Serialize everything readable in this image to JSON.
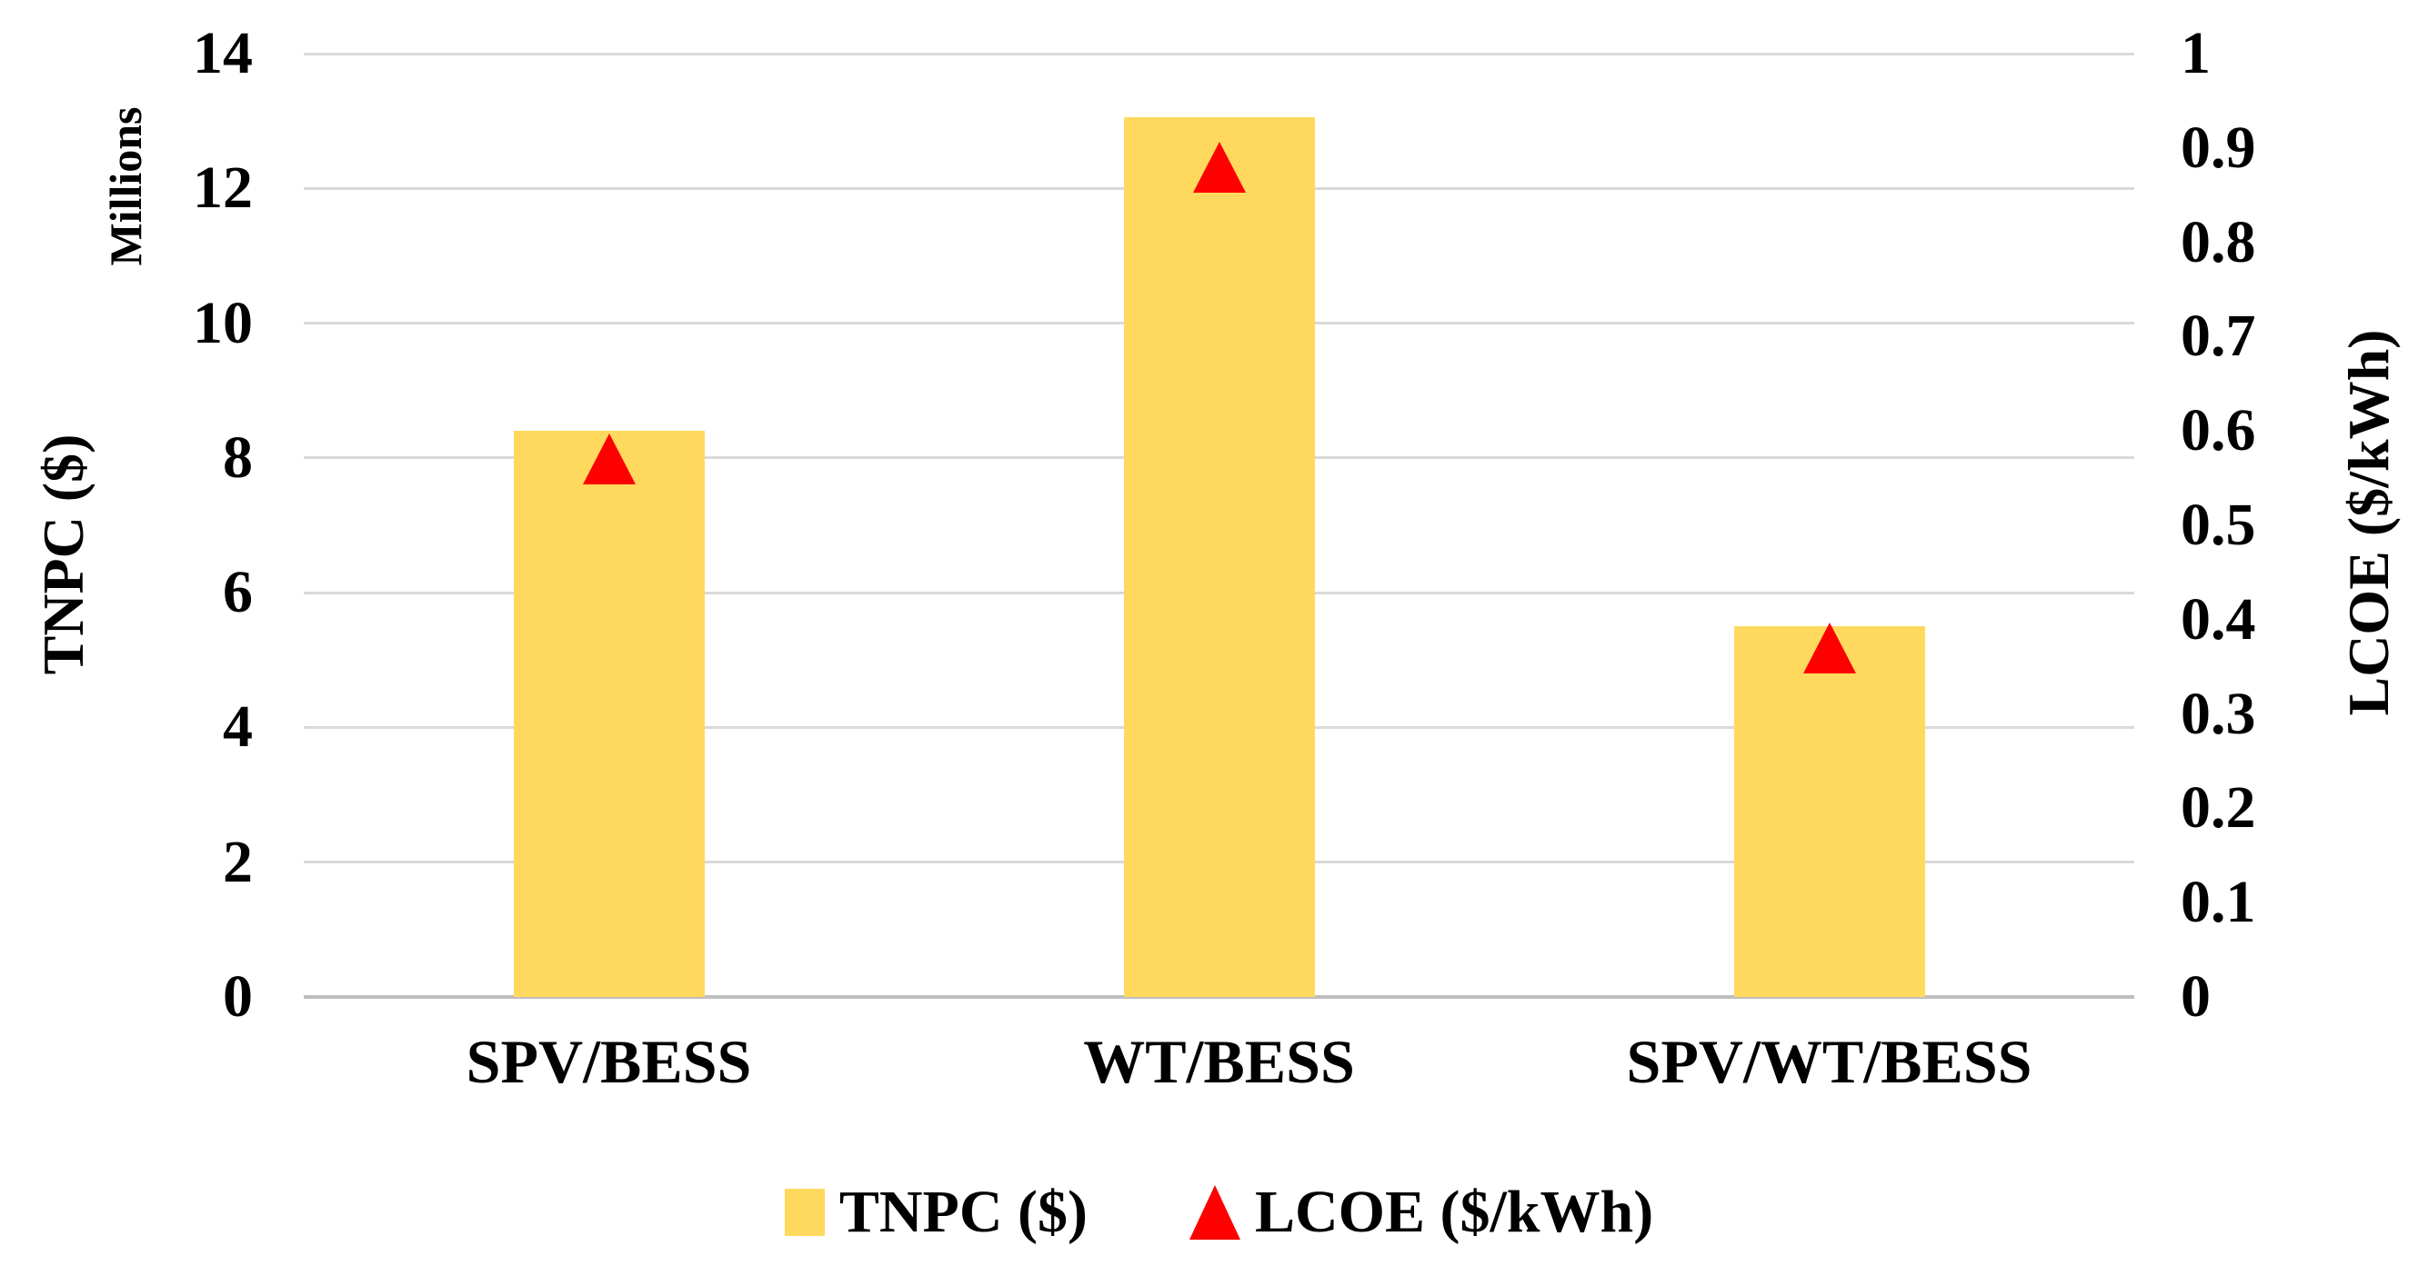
{
  "chart_data": {
    "type": "bar",
    "title": "",
    "categories": [
      "SPV/BESS",
      "WT/BESS",
      "SPV/WT/BESS"
    ],
    "series": [
      {
        "name": "TNPC ($)",
        "type": "bar",
        "axis": "left",
        "marker": "square",
        "color": "#FFD95E",
        "values": [
          8.4,
          13.05,
          5.5
        ]
      },
      {
        "name": "LCOE ($/kWh)",
        "type": "scatter",
        "axis": "right",
        "marker": "triangle",
        "color": "#FE0000",
        "values": [
          0.57,
          0.88,
          0.37
        ]
      }
    ],
    "left_axis": {
      "title": "TNPC ($)",
      "unit_label": "Millions",
      "min": 0,
      "max": 14,
      "tick_step": 2,
      "ticks": [
        "14",
        "12",
        "10",
        "8",
        "6",
        "4",
        "2",
        "0"
      ]
    },
    "right_axis": {
      "title": "LCOE ($/kWh)",
      "min": 0,
      "max": 1,
      "tick_step": 0.1,
      "ticks": [
        "1",
        "0.9",
        "0.8",
        "0.7",
        "0.6",
        "0.5",
        "0.4",
        "0.3",
        "0.2",
        "0.1",
        "0"
      ]
    },
    "legend": [
      {
        "label": "TNPC ($)",
        "marker": "square",
        "color": "#FFD95E"
      },
      {
        "label": "LCOE ($/kWh)",
        "marker": "triangle",
        "color": "#FE0000"
      }
    ],
    "grid": true,
    "legend_position": "bottom",
    "colors": {
      "gridline": "#D9D9D9",
      "axis_line": "#BFBFBF",
      "text": "#000000",
      "background": "#FFFFFF"
    }
  }
}
